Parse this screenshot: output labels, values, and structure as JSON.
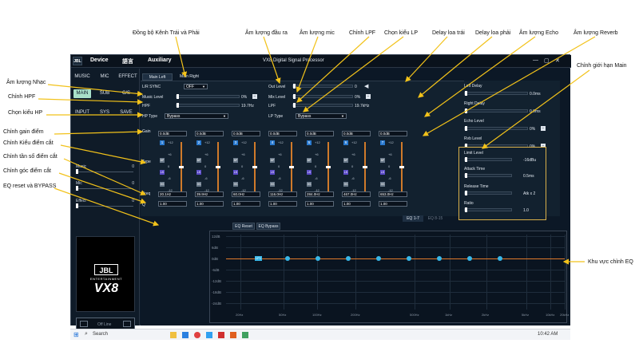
{
  "window": {
    "logo": "JBL",
    "menu": [
      "Device",
      "語言",
      "Auxiliary"
    ],
    "title": "VX8 Digital Signal Processor",
    "controls": [
      "—",
      "▢",
      "✕"
    ]
  },
  "sidebar": {
    "row1": [
      "MUSIC",
      "MIC",
      "EFFECT"
    ],
    "row2": [
      "MAIN",
      "SUB",
      "C/S"
    ],
    "row3": [
      "INPUT",
      "SYS",
      "SAVE"
    ],
    "active": "MAIN",
    "sliders": [
      {
        "label": "Music",
        "value": "0"
      },
      {
        "label": "Mic",
        "value": "0"
      },
      {
        "label": "Effect",
        "value": "0"
      }
    ],
    "brand": {
      "logo": "JBL",
      "tagline": "ENTERTAINMENT",
      "model": "VX8"
    },
    "status": "Off Line"
  },
  "tabs": [
    "Main Left",
    "Main Right"
  ],
  "controls": {
    "lr_sync": {
      "label": "L/R SYNC",
      "value": "OFF"
    },
    "music_level": {
      "label": "Music Level",
      "value": "0%"
    },
    "hpf": {
      "label": "HPF",
      "value": "19.7Hz"
    },
    "hp_type": {
      "label": "HP Type",
      "value": "Bypass"
    },
    "out_level": {
      "label": "Out Level",
      "value": "0"
    },
    "mix_level": {
      "label": "Mix Level",
      "value": "0%"
    },
    "lpf": {
      "label": "LPF",
      "value": "19.7kHz"
    },
    "lp_type": {
      "label": "LP Type",
      "value": "Bypass"
    },
    "gain_label": "Gain",
    "type_label": "Type",
    "freq_label": "Freq",
    "q_label": "Q"
  },
  "bands": [
    {
      "num": "1",
      "gain": "0.0dB",
      "freq": "20.1Hz",
      "q": "1.00"
    },
    {
      "num": "2",
      "gain": "0.0dB",
      "freq": "39.9Hz",
      "q": "1.00"
    },
    {
      "num": "3",
      "gain": "0.0dB",
      "freq": "60.0Hz",
      "q": "1.00"
    },
    {
      "num": "4",
      "gain": "0.0dB",
      "freq": "116.0Hz",
      "q": "1.00"
    },
    {
      "num": "5",
      "gain": "0.0dB",
      "freq": "284.0Hz",
      "q": "1.00"
    },
    {
      "num": "6",
      "gain": "0.0dB",
      "freq": "467.0Hz",
      "q": "1.00"
    },
    {
      "num": "7",
      "gain": "0.0dB",
      "freq": "653.0Hz",
      "q": "1.00"
    }
  ],
  "band_scale": [
    "+12",
    "+6",
    "0",
    "-6",
    "-12"
  ],
  "band_types": [
    "BP",
    "LS",
    "HS"
  ],
  "eq_pages": [
    "EQ 1-7",
    "EQ 8-15"
  ],
  "right": {
    "left_delay": {
      "label": "Left Delay",
      "value": "0.0ms"
    },
    "right_delay": {
      "label": "Right Delay",
      "value": "0.0ms"
    },
    "echo_level": {
      "label": "Echo Level",
      "value": "0%"
    },
    "rvb_level": {
      "label": "Rvb Level",
      "value": "0%"
    },
    "limit_level": {
      "label": "Limit Level",
      "value": "-16dBu"
    },
    "attack_time": {
      "label": "Attack Time",
      "value": "0.5ms"
    },
    "release_time": {
      "label": "Release Time",
      "value": "Atk x 2"
    },
    "ratio": {
      "label": "Ratio",
      "value": "1.0"
    }
  },
  "eq_buttons": [
    "EQ Reset",
    "EQ Bypass"
  ],
  "eq_graph": {
    "y_ticks": [
      "12dB",
      "6dB",
      "0dB",
      "-6dB",
      "-12dB",
      "-18dB",
      "-24dB"
    ],
    "x_ticks": [
      "20Hz",
      "50Hz",
      "100Hz",
      "200Hz",
      "500Hz",
      "1kHz",
      "2kHz",
      "5kHz",
      "10kHz",
      "20kHz"
    ],
    "selected_label": "LP1"
  },
  "taskbar": {
    "search": "Search",
    "time": "10:42 AM"
  },
  "annotations": {
    "sync": "Đồng bộ Kênh Trái và Phải",
    "out_level": "Âm lượng đầu ra",
    "mic_level": "Âm lượng mic",
    "lpf": "Chỉnh LPF",
    "lp_type": "Chọn kiểu LP",
    "left_delay": "Delay loa trái",
    "right_delay": "Delay loa phải",
    "echo": "Âm lượng Echo",
    "reverb": "Âm lượng Reverb",
    "limit": "Chỉnh giới hạn Main",
    "music_level": "Âm lượng Nhạc",
    "hpf": "Chỉnh HPF",
    "hp_type": "Chọn kiểu HP",
    "gain": "Chỉnh gain điểm",
    "type": "Chỉnh Kiểu điểm cắt",
    "freq": "Chỉnh tần số điểm cắt",
    "q": "Chỉnh góc điểm cắt",
    "eq_reset": "EQ reset và BYPASS",
    "eq_area": "Khu vực chỉnh EQ"
  },
  "colors": {
    "accent": "#38b8e8",
    "eq_line": "#e07a2a",
    "highlight_box": "#d9b04a",
    "active_button": "#a8e0c8"
  }
}
